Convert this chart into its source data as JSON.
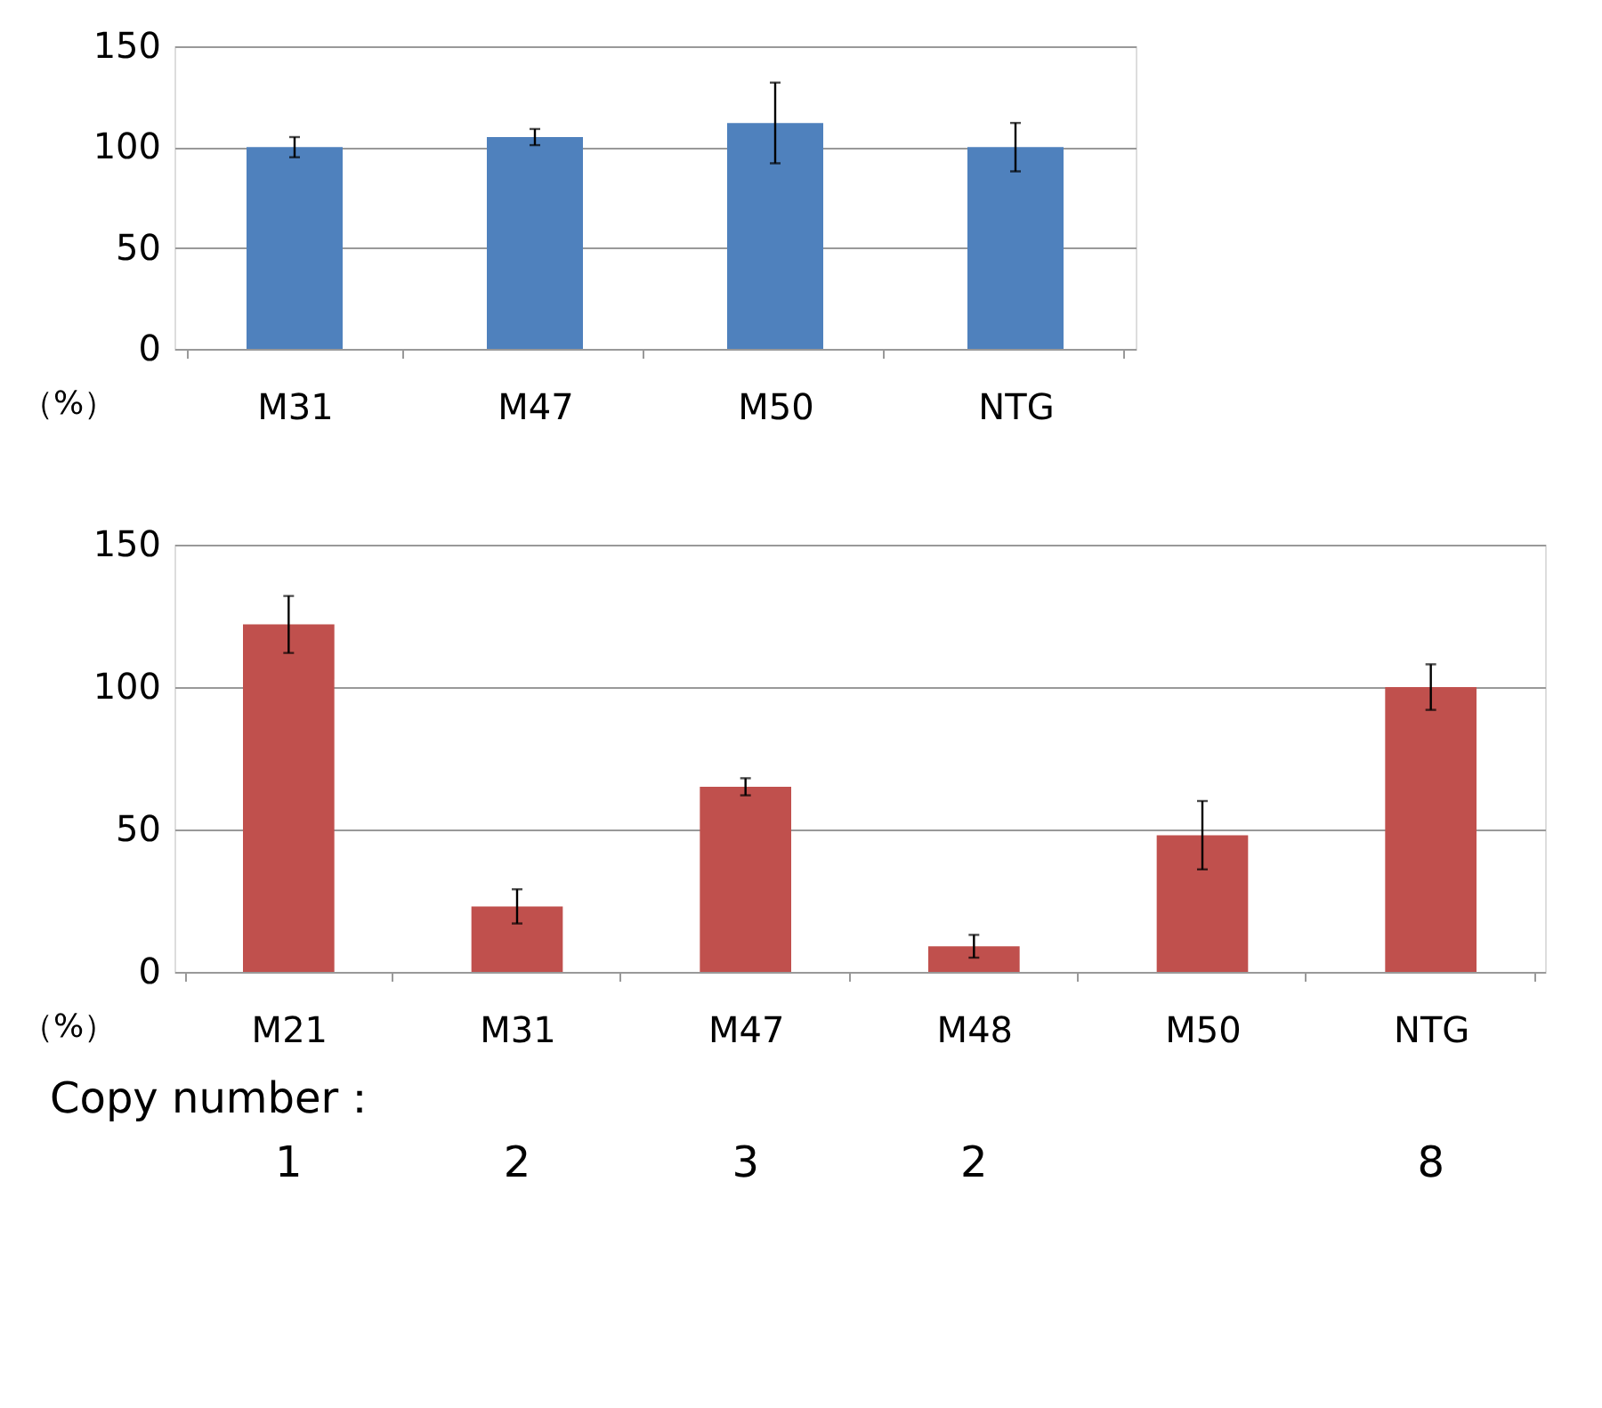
{
  "chart_data": [
    {
      "type": "bar",
      "ylabel": "（%）",
      "categories": [
        "M31",
        "M47",
        "M50",
        "NTG"
      ],
      "series": [
        {
          "color": "#4f81bd",
          "values": [
            100,
            105,
            112,
            100
          ],
          "errors": [
            5,
            4,
            20,
            12
          ]
        }
      ],
      "ylim": [
        0,
        150
      ],
      "yticks": [
        0,
        50,
        100,
        150
      ],
      "grid": "y"
    },
    {
      "type": "bar",
      "ylabel": "（%）",
      "categories": [
        "M21",
        "M31",
        "M47",
        "M48",
        "M50",
        "NTG"
      ],
      "series": [
        {
          "color": "#c0504d",
          "values": [
            122,
            23,
            65,
            9,
            48,
            100
          ],
          "errors": [
            10,
            6,
            3,
            4,
            12,
            8
          ]
        }
      ],
      "ylim": [
        0,
        150
      ],
      "yticks": [
        0,
        50,
        100,
        150
      ],
      "grid": "y",
      "annotations": [
        "Copy number：",
        "1",
        "2",
        "3",
        "2",
        "8"
      ]
    }
  ]
}
